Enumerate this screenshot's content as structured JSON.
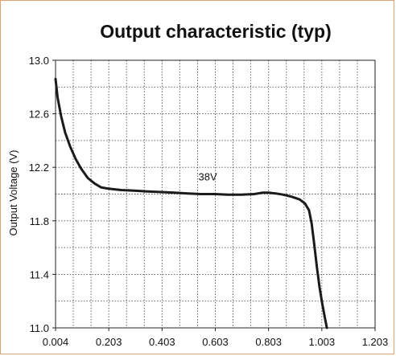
{
  "chart_data": {
    "type": "line",
    "title": "Output characteristic (typ)",
    "xlabel": "",
    "ylabel": "Output Voltage (V)",
    "xlim": [
      0.004,
      1.203
    ],
    "ylim": [
      11.0,
      13.0
    ],
    "x_ticks": [
      "0.004",
      "0.203",
      "0.403",
      "0.603",
      "0.803",
      "1.003",
      "1.203"
    ],
    "y_ticks": [
      "11.0",
      "11.4",
      "11.8",
      "12.2",
      "12.6",
      "13.0"
    ],
    "grid": true,
    "series": [
      {
        "name": "38V",
        "color": "#1a1a1a",
        "x": [
          0.004,
          0.012,
          0.025,
          0.04,
          0.06,
          0.08,
          0.1,
          0.125,
          0.15,
          0.175,
          0.203,
          0.25,
          0.3,
          0.35,
          0.403,
          0.45,
          0.5,
          0.55,
          0.603,
          0.65,
          0.7,
          0.75,
          0.78,
          0.803,
          0.83,
          0.86,
          0.89,
          0.92,
          0.94,
          0.955,
          0.965,
          0.975,
          0.985,
          0.995,
          1.005,
          1.015,
          1.022
        ],
        "y": [
          12.86,
          12.72,
          12.58,
          12.46,
          12.35,
          12.26,
          12.19,
          12.12,
          12.08,
          12.05,
          12.04,
          12.03,
          12.025,
          12.02,
          12.015,
          12.01,
          12.005,
          12.0,
          12.0,
          11.995,
          11.995,
          12.0,
          12.01,
          12.01,
          12.005,
          11.995,
          11.98,
          11.96,
          11.93,
          11.88,
          11.78,
          11.62,
          11.45,
          11.3,
          11.18,
          11.07,
          11.0
        ]
      }
    ],
    "annotations": [
      {
        "text": "38V",
        "x": 0.575,
        "y": 12.15
      }
    ]
  }
}
